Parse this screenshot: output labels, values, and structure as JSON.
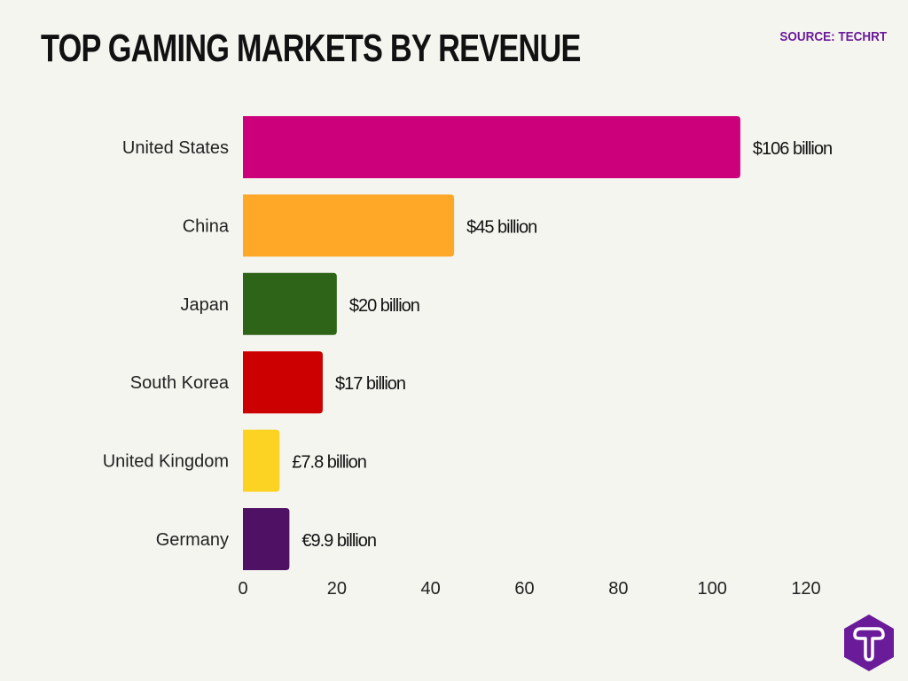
{
  "chart_data": {
    "type": "bar",
    "orientation": "horizontal",
    "title": "TOP GAMING MARKETS BY REVENUE",
    "source": "SOURCE: TECHRT",
    "categories": [
      "United States",
      "China",
      "Japan",
      "South Korea",
      "United Kingdom",
      "Germany"
    ],
    "values": [
      106,
      45,
      20,
      17,
      7.8,
      9.9
    ],
    "data_labels": [
      "$106 billion",
      "$45 billion",
      "$20 billion",
      "$17 billion",
      "£7.8 billion",
      "€9.9 billion"
    ],
    "colors": [
      "#cc007a",
      "#ffa726",
      "#2e6417",
      "#cc0000",
      "#fdd323",
      "#4f1163"
    ],
    "xlim": [
      0,
      120
    ],
    "xticks": [
      "0",
      "20",
      "40",
      "60",
      "80",
      "100",
      "120"
    ],
    "grid": false,
    "legend": "none"
  },
  "brand": {
    "logo": "T",
    "color": "#6a1b9a"
  }
}
